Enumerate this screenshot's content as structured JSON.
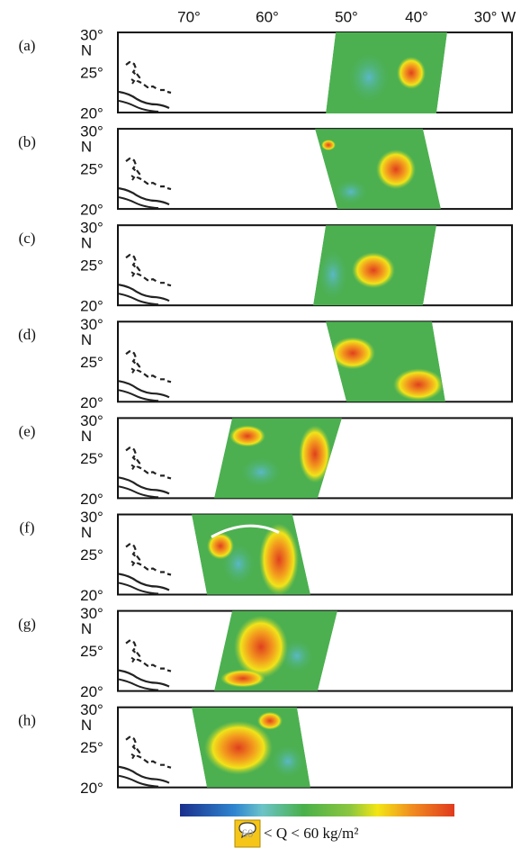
{
  "figure": {
    "x_labels": [
      "70°",
      "60°",
      "50°",
      "40°",
      "30° W"
    ],
    "y_labels": [
      "30°",
      "N",
      "25°",
      "20°"
    ],
    "panels": [
      "(a)",
      "(b)",
      "(c)",
      "(d)",
      "(e)",
      "(f)",
      "(g)",
      "(h)"
    ],
    "colorbar": {
      "bubble": "60",
      "label": "< Q < 60 kg/m²"
    }
  }
}
